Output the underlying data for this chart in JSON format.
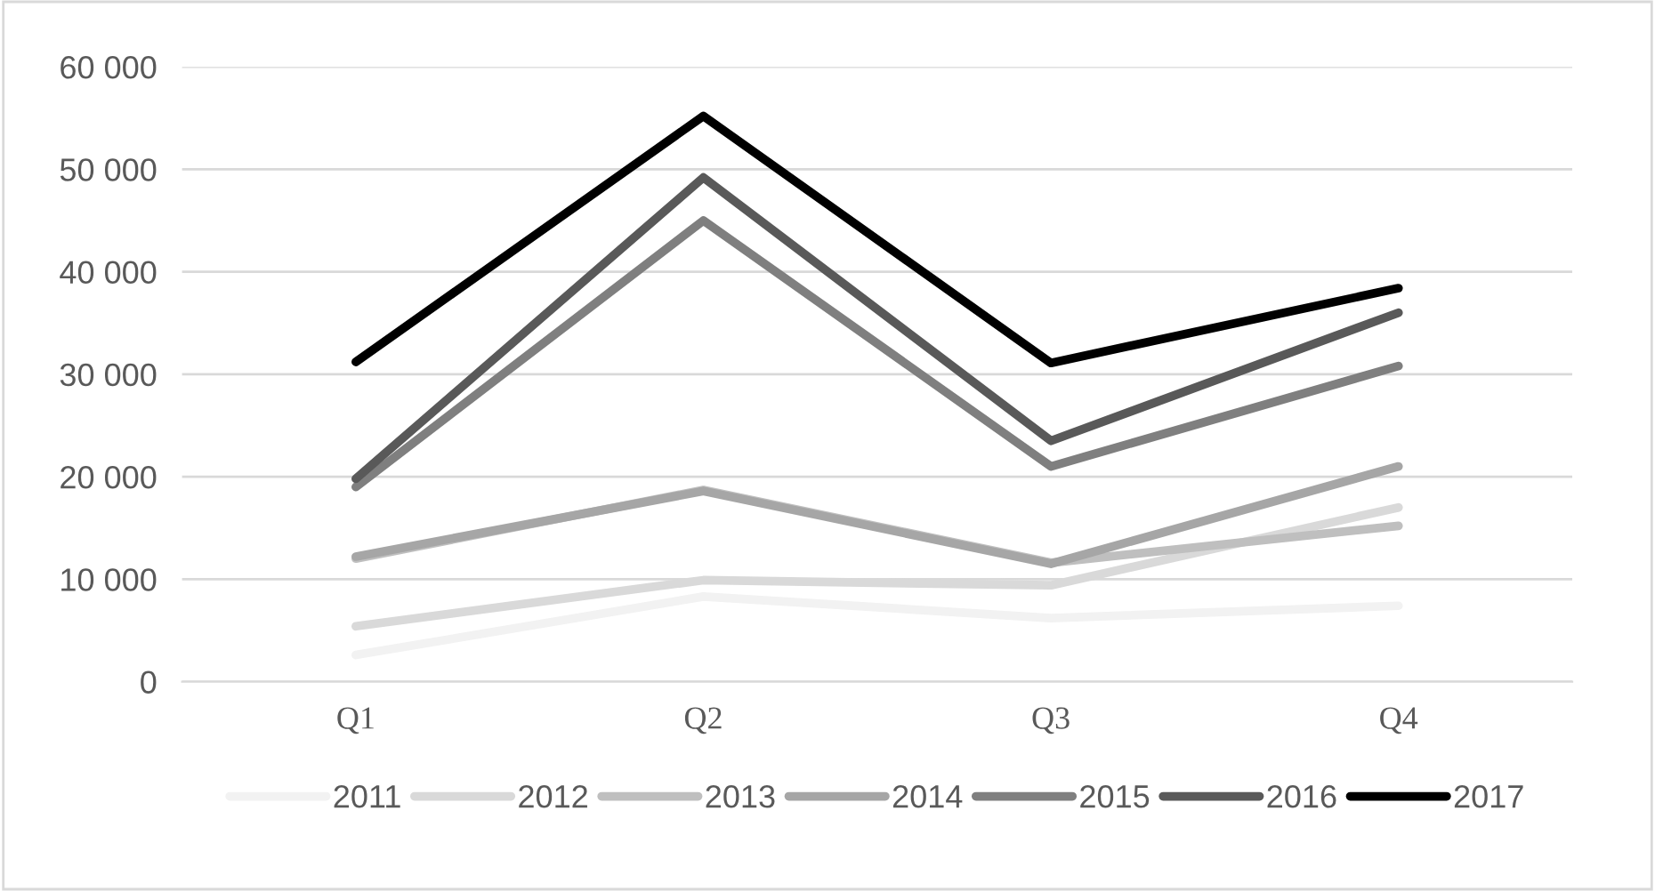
{
  "chart_data": {
    "type": "line",
    "categories": [
      "Q1",
      "Q2",
      "Q3",
      "Q4"
    ],
    "series": [
      {
        "name": "2011",
        "color": "#f2f2f2",
        "values": [
          2600,
          8300,
          6200,
          7400
        ]
      },
      {
        "name": "2012",
        "color": "#d9d9d9",
        "values": [
          5400,
          9900,
          9400,
          17000
        ]
      },
      {
        "name": "2013",
        "color": "#bfbfbf",
        "values": [
          12000,
          18700,
          11600,
          15200
        ]
      },
      {
        "name": "2014",
        "color": "#a6a6a6",
        "values": [
          12200,
          18600,
          11500,
          21000
        ]
      },
      {
        "name": "2015",
        "color": "#7f7f7f",
        "values": [
          19000,
          45000,
          21000,
          30800
        ]
      },
      {
        "name": "2016",
        "color": "#595959",
        "values": [
          19800,
          49200,
          23500,
          36000
        ]
      },
      {
        "name": "2017",
        "color": "#000000",
        "values": [
          31200,
          55200,
          31100,
          38400
        ]
      }
    ],
    "ylim": [
      0,
      60000
    ],
    "yticks": [
      {
        "value": 0,
        "label": "0"
      },
      {
        "value": 10000,
        "label": "10 000"
      },
      {
        "value": 20000,
        "label": "20 000"
      },
      {
        "value": 30000,
        "label": "30 000"
      },
      {
        "value": 40000,
        "label": "40 000"
      },
      {
        "value": 50000,
        "label": "50 000"
      },
      {
        "value": 60000,
        "label": "60 000"
      }
    ],
    "grid": "y",
    "legend": "bottom",
    "marker": "none",
    "line_style": "solid"
  }
}
